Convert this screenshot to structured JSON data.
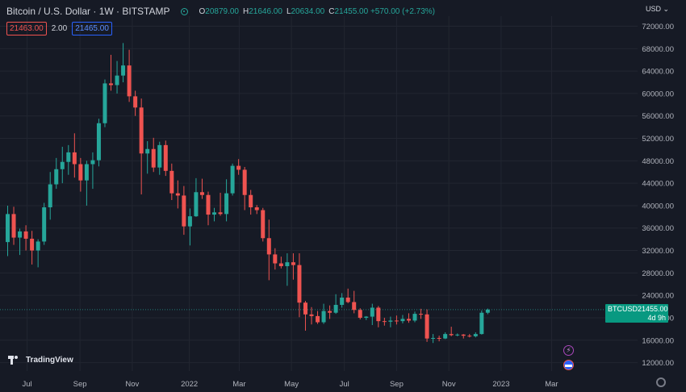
{
  "header": {
    "title": "Bitcoin / U.S. Dollar · 1W · BITSTAMP",
    "ohlc": [
      {
        "k": "O",
        "v": "20879.00"
      },
      {
        "k": "H",
        "v": "21646.00"
      },
      {
        "k": "L",
        "v": "20634.00"
      },
      {
        "k": "C",
        "v": "21455.00 +570.00 (+2.73%)"
      }
    ],
    "sell_price": "21463.00",
    "spread": "2.00",
    "buy_price": "21465.00"
  },
  "currency_menu": "USD",
  "brand": "TradingView",
  "price_tag": {
    "symbol": "BTCUSD",
    "price": "21455.00",
    "countdown": "4d 9h"
  },
  "colors": {
    "up": "#26a69a",
    "down": "#ef5350",
    "background": "#161a25",
    "grid": "#222631",
    "axis_text": "#b2b5be"
  },
  "icons": [
    "lightning-icon",
    "us-flag-icon",
    "settings-gear-icon",
    "currency-chevron-icon"
  ],
  "chart_data": {
    "type": "candlestick",
    "interval": "1W",
    "symbol": "BTCUSD",
    "x_ticks": [
      "Jul",
      "Sep",
      "Nov",
      "2022",
      "Mar",
      "May",
      "Jul",
      "Sep",
      "Nov",
      "2023",
      "Mar"
    ],
    "y_ticks": [
      "12000.00",
      "16000.00",
      "20000.00",
      "24000.00",
      "28000.00",
      "32000.00",
      "36000.00",
      "40000.00",
      "44000.00",
      "48000.00",
      "52000.00",
      "56000.00",
      "60000.00",
      "64000.00",
      "68000.00",
      "72000.00"
    ],
    "ylim": [
      10500,
      73800
    ],
    "last_price": 21455,
    "candles": [
      [
        33500,
        40000,
        31000,
        38500
      ],
      [
        38500,
        39800,
        33000,
        34300
      ],
      [
        34300,
        35900,
        31200,
        35400
      ],
      [
        35400,
        36500,
        32000,
        34100
      ],
      [
        34100,
        35500,
        29500,
        32000
      ],
      [
        32000,
        34000,
        29000,
        33600
      ],
      [
        33600,
        40500,
        33000,
        39700
      ],
      [
        39700,
        46000,
        37500,
        43800
      ],
      [
        43800,
        48500,
        43000,
        46500
      ],
      [
        46500,
        50500,
        44000,
        47800
      ],
      [
        47800,
        50800,
        45500,
        49500
      ],
      [
        49500,
        52900,
        45000,
        47400
      ],
      [
        47400,
        48500,
        42500,
        44500
      ],
      [
        44500,
        48000,
        40000,
        47400
      ],
      [
        47400,
        49500,
        43000,
        48100
      ],
      [
        48100,
        55500,
        47000,
        54700
      ],
      [
        54700,
        62500,
        54000,
        61800
      ],
      [
        61800,
        66900,
        60500,
        61500
      ],
      [
        61500,
        65800,
        60000,
        63200
      ],
      [
        63200,
        69000,
        62000,
        65000
      ],
      [
        65000,
        67800,
        58500,
        59500
      ],
      [
        59500,
        60500,
        56000,
        57500
      ],
      [
        57500,
        59100,
        42000,
        49300
      ],
      [
        49300,
        51500,
        45700,
        50100
      ],
      [
        50100,
        52100,
        46000,
        46800
      ],
      [
        46800,
        51400,
        45500,
        50800
      ],
      [
        50800,
        51600,
        45300,
        46200
      ],
      [
        46200,
        47500,
        41000,
        42200
      ],
      [
        42200,
        44500,
        39500,
        41800
      ],
      [
        41800,
        43500,
        34800,
        36300
      ],
      [
        36300,
        39500,
        32900,
        38100
      ],
      [
        38100,
        44900,
        38000,
        42400
      ],
      [
        42400,
        44800,
        41200,
        41900
      ],
      [
        41900,
        42500,
        36500,
        38400
      ],
      [
        38400,
        39600,
        37200,
        38800
      ],
      [
        38800,
        42300,
        38200,
        38500
      ],
      [
        38500,
        44700,
        37200,
        42200
      ],
      [
        42200,
        47500,
        41800,
        47100
      ],
      [
        47100,
        48300,
        45500,
        46400
      ],
      [
        46400,
        46900,
        39200,
        41900
      ],
      [
        41900,
        42800,
        38400,
        39700
      ],
      [
        39700,
        40100,
        38500,
        39200
      ],
      [
        39200,
        39600,
        33600,
        34200
      ],
      [
        34200,
        37500,
        26700,
        31300
      ],
      [
        31300,
        32400,
        28600,
        29700
      ],
      [
        29700,
        30900,
        28800,
        29200
      ],
      [
        29200,
        31500,
        25700,
        29900
      ],
      [
        29900,
        31500,
        26800,
        29400
      ],
      [
        29400,
        31500,
        20100,
        22700
      ],
      [
        22700,
        23000,
        17700,
        20600
      ],
      [
        20600,
        21900,
        18800,
        20300
      ],
      [
        20300,
        21200,
        18900,
        19200
      ],
      [
        19200,
        22500,
        18900,
        21200
      ],
      [
        21200,
        22200,
        19800,
        20900
      ],
      [
        20900,
        24200,
        20700,
        22300
      ],
      [
        22300,
        24400,
        21800,
        23600
      ],
      [
        23600,
        25200,
        22600,
        22800
      ],
      [
        22800,
        24800,
        20800,
        21400
      ],
      [
        21400,
        21700,
        19700,
        20000
      ],
      [
        20000,
        20300,
        19600,
        20200
      ],
      [
        20200,
        22500,
        18700,
        21800
      ],
      [
        21800,
        22100,
        18300,
        19400
      ],
      [
        19400,
        20000,
        18600,
        19300
      ],
      [
        19300,
        20200,
        18300,
        19500
      ],
      [
        19500,
        20400,
        18800,
        19400
      ],
      [
        19400,
        20500,
        19000,
        19800
      ],
      [
        19800,
        20800,
        19100,
        19500
      ],
      [
        19500,
        21100,
        19200,
        20700
      ],
      [
        20700,
        21600,
        19800,
        20600
      ],
      [
        20600,
        21500,
        15700,
        16300
      ],
      [
        16300,
        17100,
        15500,
        16400
      ],
      [
        16400,
        16800,
        15800,
        16300
      ],
      [
        16300,
        17400,
        16200,
        17100
      ],
      [
        17100,
        18400,
        16700,
        16900
      ],
      [
        16900,
        17200,
        16700,
        17000
      ],
      [
        17000,
        17100,
        16300,
        16800
      ],
      [
        16800,
        17100,
        16500,
        16700
      ],
      [
        16700,
        17400,
        16500,
        17100
      ],
      [
        17100,
        21300,
        17000,
        20900
      ],
      [
        20900,
        21646,
        20634,
        21455
      ]
    ],
    "grid": true
  }
}
